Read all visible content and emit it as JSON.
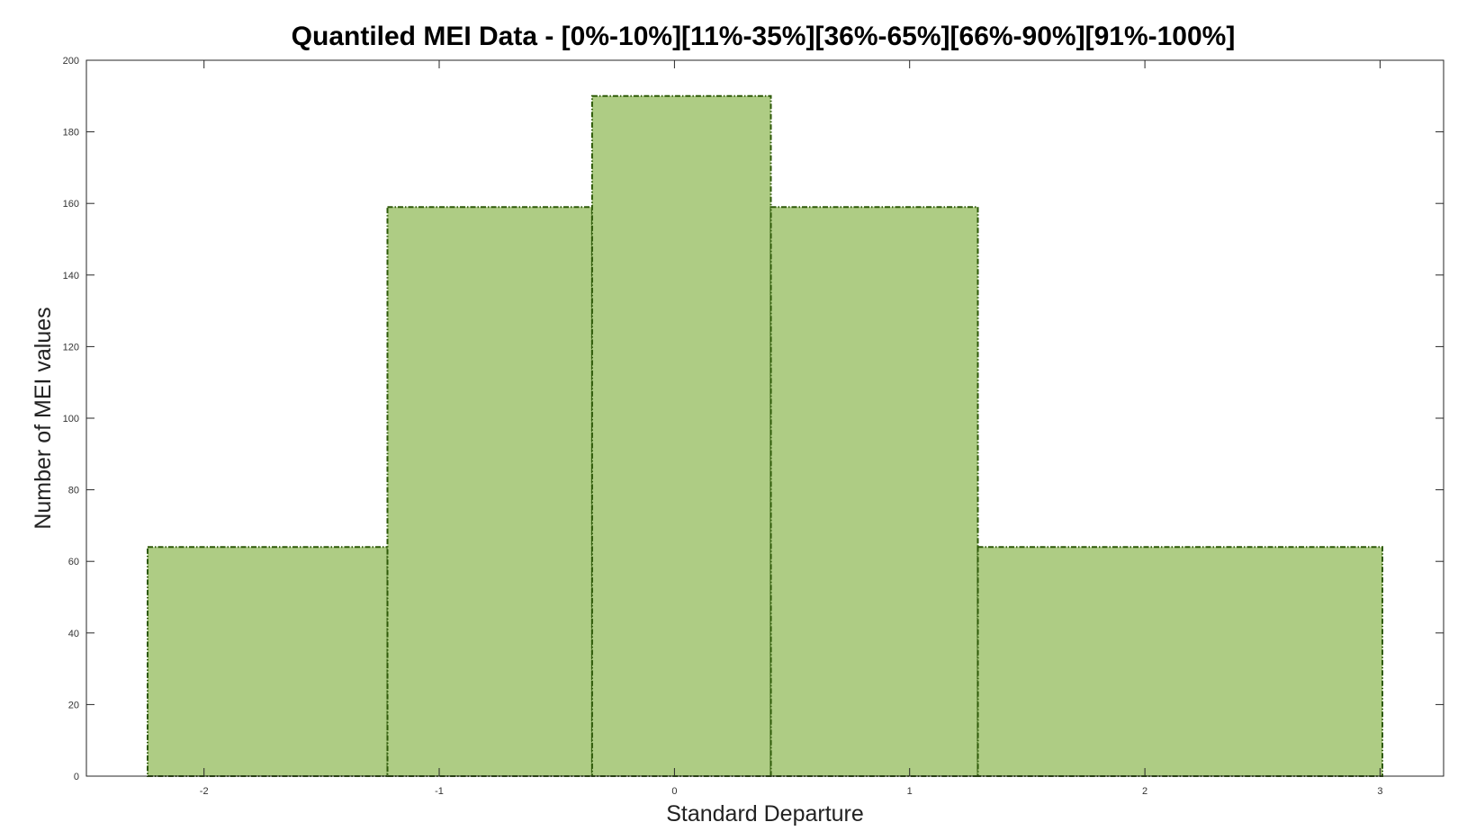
{
  "chart_data": {
    "type": "histogram",
    "title": "Quantiled MEI Data - [0%-10%][11%-35%][36%-65%][66%-90%][91%-100%]",
    "xlabel": "Standard Departure",
    "ylabel": "Number of MEI values",
    "xlim": [
      -2.5,
      3.27
    ],
    "ylim": [
      0,
      200
    ],
    "xticks": [
      "-2",
      "-1",
      "0",
      "1",
      "2",
      "3"
    ],
    "yticks": [
      "0",
      "20",
      "40",
      "60",
      "80",
      "100",
      "120",
      "140",
      "160",
      "180",
      "200"
    ],
    "bins": [
      {
        "x_start": -2.24,
        "x_end": -1.22,
        "value": 64
      },
      {
        "x_start": -1.22,
        "x_end": -0.35,
        "value": 159
      },
      {
        "x_start": -0.35,
        "x_end": 0.41,
        "value": 190
      },
      {
        "x_start": 0.41,
        "x_end": 1.29,
        "value": 159
      },
      {
        "x_start": 1.29,
        "x_end": 3.01,
        "value": 64
      }
    ],
    "grid": false,
    "colors": {
      "bar_fill": "#AECC84",
      "bar_edge": "#2E5A08",
      "axis": "#262626"
    }
  }
}
